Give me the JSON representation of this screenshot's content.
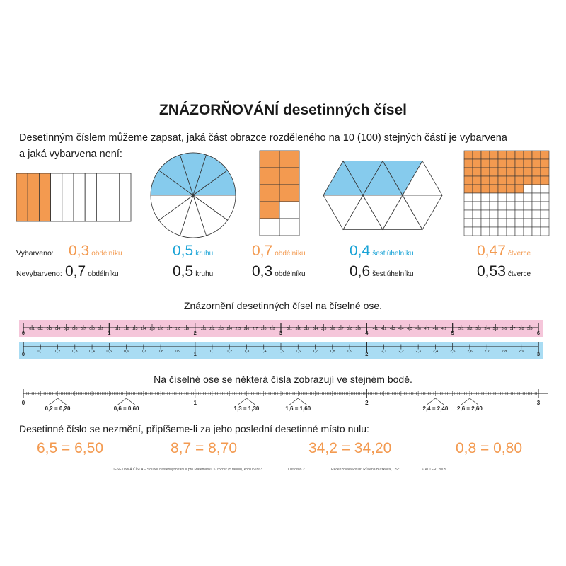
{
  "title": "ZNÁZORŇOVÁNÍ desetinných čísel",
  "intro_line1": "Desetinným číslem můžeme zapsat, jaká část obrazce rozděleného na 10 (100) stejných částí je vybarvena",
  "intro_line2": "a jaká vybarvena není:",
  "row_labels": {
    "colored": "Vybarveno:",
    "uncolored": "Nevybarveno:"
  },
  "shapes": [
    {
      "colored": "0,3",
      "colored_unit": "obdélníku",
      "uncolored": "0,7",
      "uncolored_unit": "obdélníku",
      "filled_fraction": 0.3
    },
    {
      "colored": "0,5",
      "colored_unit": "kruhu",
      "uncolored": "0,5",
      "uncolored_unit": "kruhu",
      "filled_fraction": 0.5
    },
    {
      "colored": "0,7",
      "colored_unit": "obdélníku",
      "uncolored": "0,3",
      "uncolored_unit": "obdélníku",
      "filled_fraction": 0.7
    },
    {
      "colored": "0,4",
      "colored_unit": "šestiúhelníku",
      "uncolored": "0,6",
      "uncolored_unit": "šestiúhelníku",
      "filled_fraction": 0.4
    },
    {
      "colored": "0,47",
      "colored_unit": "čtverce",
      "uncolored": "0,53",
      "uncolored_unit": "čtverce",
      "filled_fraction": 0.47
    }
  ],
  "section2_title": "Znázornění desetinných čísel na číselné ose.",
  "pink_axis": {
    "range": [
      0,
      6
    ],
    "step": 0.1,
    "color": "#f5c6da"
  },
  "blue_axis": {
    "range": [
      0,
      3
    ],
    "step": 0.1,
    "color": "#a9dcf3"
  },
  "section3_title": "Na číselné ose se některá čísla zobrazují ve stejném bodě.",
  "axis3": {
    "range": [
      0,
      3
    ],
    "major_labels": [
      "0",
      "1",
      "2",
      "3"
    ],
    "equalities": [
      "0,2 = 0,20",
      "0,6 = 0,60",
      "1,3 = 1,30",
      "1,6 = 1,60",
      "2,4 = 2,40",
      "2,6 = 2,60"
    ],
    "equality_values": [
      0.2,
      0.6,
      1.3,
      1.6,
      2.4,
      2.6
    ]
  },
  "section4_title": "Desetinné číslo se nezmění, připíšeme-li za jeho poslední desetinné místo nulu:",
  "equations": [
    "6,5 = 6,50",
    "8,7 = 8,70",
    "34,2 = 34,20",
    "0,8 = 0,80"
  ],
  "footer": {
    "left": "DESETINNÁ ČÍSLA – Soubor nástěnných tabulí pro Matematiku 5. ročník (5 tabulí), kód 052863",
    "mid": "List číslo 2",
    "review": "Recenzovala RNDr. Růžena Blažková, CSc.",
    "right": "© ALTER, 2005"
  },
  "colors": {
    "orange": "#f39a50",
    "blue": "#86cbed"
  }
}
